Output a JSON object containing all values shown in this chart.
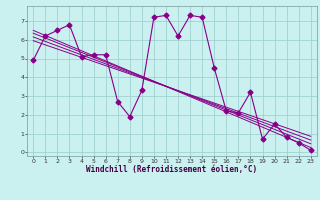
{
  "title": "",
  "xlabel": "Windchill (Refroidissement éolien,°C)",
  "ylabel": "",
  "bg_color": "#caf0f0",
  "line_color": "#880088",
  "grid_color": "#99cccc",
  "xlim": [
    -0.5,
    23.5
  ],
  "ylim": [
    -0.2,
    7.8
  ],
  "xticks": [
    0,
    1,
    2,
    3,
    4,
    5,
    6,
    7,
    8,
    9,
    10,
    11,
    12,
    13,
    14,
    15,
    16,
    17,
    18,
    19,
    20,
    21,
    22,
    23
  ],
  "yticks": [
    0,
    1,
    2,
    3,
    4,
    5,
    6,
    7
  ],
  "main_x": [
    0,
    1,
    2,
    3,
    4,
    5,
    6,
    7,
    8,
    9,
    10,
    11,
    12,
    13,
    14,
    15,
    16,
    17,
    18,
    19,
    20,
    21,
    22,
    23
  ],
  "main_y": [
    4.9,
    6.2,
    6.5,
    6.8,
    5.1,
    5.2,
    5.2,
    2.7,
    1.9,
    3.3,
    7.2,
    7.3,
    6.2,
    7.3,
    7.2,
    4.5,
    2.2,
    2.1,
    3.2,
    0.7,
    1.5,
    0.8,
    0.5,
    0.1
  ],
  "trend1_x": [
    0,
    23
  ],
  "trend1_y": [
    6.5,
    0.25
  ],
  "trend2_x": [
    0,
    23
  ],
  "trend2_y": [
    6.35,
    0.45
  ],
  "trend3_x": [
    0,
    23
  ],
  "trend3_y": [
    6.15,
    0.65
  ],
  "trend4_x": [
    0,
    23
  ],
  "trend4_y": [
    5.95,
    0.85
  ]
}
